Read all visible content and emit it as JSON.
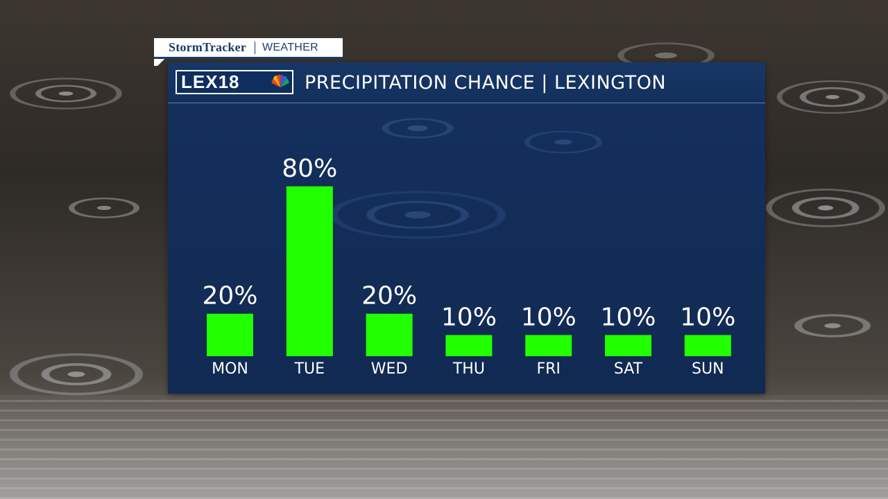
{
  "strap": {
    "brand": "StormTracker",
    "section": "WEATHER"
  },
  "header": {
    "logo_text": "LEX18",
    "title": "PRECIPITATION CHANCE | LEXINGTON"
  },
  "colors": {
    "bar": "#22ff00",
    "panel": "#13305c",
    "text": "#ffffff"
  },
  "chart_data": {
    "type": "bar",
    "categories": [
      "MON",
      "TUE",
      "WED",
      "THU",
      "FRI",
      "SAT",
      "SUN"
    ],
    "values": [
      20,
      80,
      20,
      10,
      10,
      10,
      10
    ],
    "value_labels": [
      "20%",
      "80%",
      "20%",
      "10%",
      "10%",
      "10%",
      "10%"
    ],
    "ylim": [
      0,
      100
    ],
    "grid": false,
    "legend": "none"
  }
}
